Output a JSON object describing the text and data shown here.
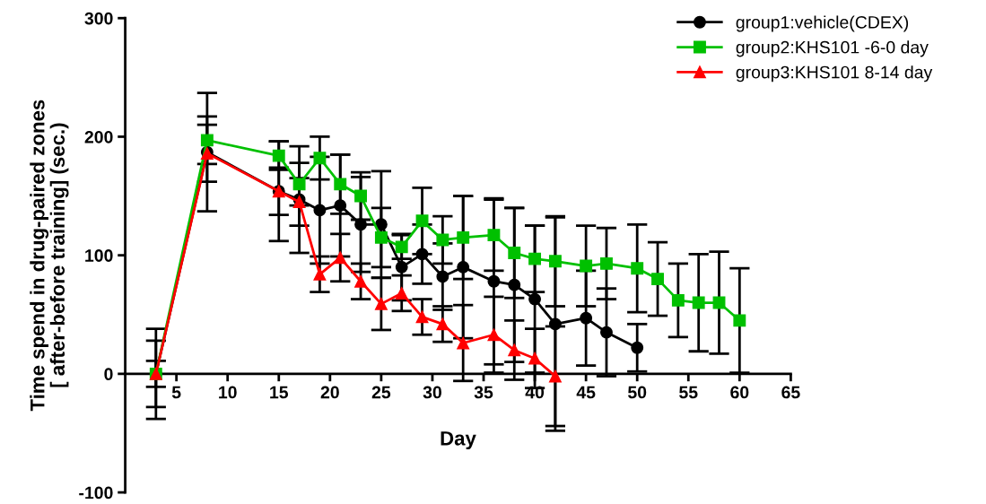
{
  "chart_data": {
    "type": "line",
    "xlabel": "Day",
    "ylabel": "Time spend in drug-paired zones\n[ after-before training] (sec.)",
    "xlim": [
      0,
      65
    ],
    "xticks": [
      5,
      10,
      15,
      20,
      25,
      30,
      35,
      40,
      45,
      50,
      55,
      60,
      65
    ],
    "ylim": [
      -100,
      300
    ],
    "yticks": [
      -100,
      0,
      100,
      200,
      300
    ],
    "grid": false,
    "legend": "top right",
    "series": [
      {
        "name": "group1:vehicle(CDEX)",
        "color": "#000000",
        "marker": "circle",
        "x": [
          3,
          8,
          15,
          17,
          19,
          21,
          23,
          25,
          27,
          29,
          31,
          33,
          36,
          38,
          40,
          42,
          45,
          47,
          50
        ],
        "values": [
          0,
          187,
          154,
          147,
          138,
          142,
          126,
          126,
          90,
          101,
          82,
          90,
          78,
          75,
          63,
          42,
          47,
          35,
          22
        ],
        "errors": [
          38,
          50,
          42,
          45,
          45,
          43,
          40,
          45,
          28,
          25,
          28,
          60,
          70,
          65,
          62,
          90,
          40,
          37,
          20
        ]
      },
      {
        "name": "group2:KHS101 -6-0 day",
        "color": "#00c000",
        "marker": "square",
        "x": [
          3,
          8,
          15,
          17,
          19,
          21,
          23,
          25,
          27,
          29,
          31,
          33,
          36,
          38,
          40,
          42,
          45,
          47,
          50,
          52,
          54,
          56,
          58,
          60
        ],
        "values": [
          0,
          197,
          184,
          160,
          182,
          160,
          150,
          115,
          107,
          129,
          113,
          115,
          117,
          102,
          97,
          95,
          91,
          93,
          89,
          80,
          62,
          60,
          60,
          45
        ],
        "errors": [
          28,
          20,
          12,
          18,
          18,
          25,
          20,
          25,
          10,
          28,
          20,
          35,
          30,
          38,
          28,
          38,
          34,
          30,
          37,
          31,
          31,
          41,
          43,
          44
        ]
      },
      {
        "name": "group3:KHS101 8-14 day",
        "color": "#ff0000",
        "marker": "triangle",
        "x": [
          3,
          8,
          15,
          17,
          19,
          21,
          23,
          25,
          27,
          29,
          31,
          33,
          36,
          38,
          40,
          42
        ],
        "values": [
          0,
          186,
          154,
          145,
          84,
          98,
          78,
          59,
          68,
          48,
          42,
          26,
          33,
          20,
          13,
          -2
        ],
        "errors": [
          11,
          24,
          20,
          20,
          15,
          20,
          15,
          22,
          15,
          15,
          15,
          32,
          32,
          25,
          25,
          42
        ]
      }
    ]
  }
}
